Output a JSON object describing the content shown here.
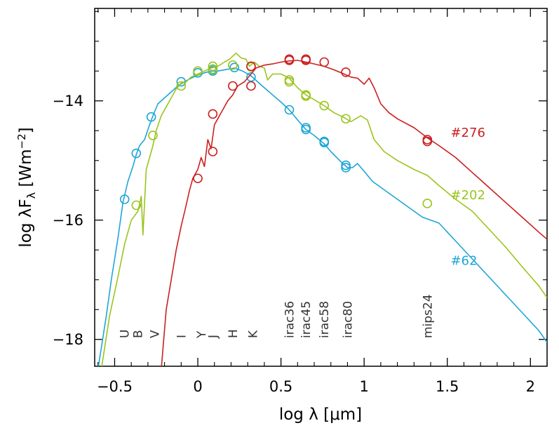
{
  "chart_data": {
    "type": "line",
    "title": "",
    "xlabel_parts": {
      "pre": "log λ [",
      "mu": "μ",
      "post": "m]"
    },
    "ylabel_parts": {
      "pre": "log λF",
      "sub": "λ",
      "mid": " [Wm",
      "sup": "−2",
      "post": "]"
    },
    "xlim": [
      -0.62,
      2.1
    ],
    "ylim": [
      -18.45,
      -12.45
    ],
    "x_ticks": [
      -0.5,
      0,
      0.5,
      1,
      1.5,
      2
    ],
    "x_tick_labels": [
      "−0.5",
      "0",
      "0.5",
      "1",
      "1.5",
      "2"
    ],
    "y_ticks": [
      -14,
      -16,
      -18
    ],
    "y_tick_labels": [
      "−14",
      "−16",
      "−18"
    ],
    "grid": false,
    "bands": [
      {
        "name": "U",
        "x": -0.44
      },
      {
        "name": "B",
        "x": -0.36
      },
      {
        "name": "V",
        "x": -0.26
      },
      {
        "name": "I",
        "x": -0.1
      },
      {
        "name": "Y",
        "x": 0.02
      },
      {
        "name": "J",
        "x": 0.09
      },
      {
        "name": "H",
        "x": 0.21
      },
      {
        "name": "K",
        "x": 0.33
      },
      {
        "name": "irac36",
        "x": 0.55
      },
      {
        "name": "irac45",
        "x": 0.65
      },
      {
        "name": "irac58",
        "x": 0.76
      },
      {
        "name": "irac80",
        "x": 0.9
      },
      {
        "name": "mips24",
        "x": 1.38
      }
    ],
    "series": [
      {
        "name": "#62",
        "color": "#1ea6d6",
        "label_pos": {
          "x": 1.52,
          "y": -16.75
        },
        "model": [
          [
            -0.6,
            -18.5
          ],
          [
            -0.55,
            -17.6
          ],
          [
            -0.52,
            -17.0
          ],
          [
            -0.48,
            -16.3
          ],
          [
            -0.45,
            -15.7
          ],
          [
            -0.42,
            -15.35
          ],
          [
            -0.39,
            -15.1
          ],
          [
            -0.37,
            -14.9
          ],
          [
            -0.35,
            -14.75
          ],
          [
            -0.32,
            -14.65
          ],
          [
            -0.29,
            -14.4
          ],
          [
            -0.27,
            -14.25
          ],
          [
            -0.24,
            -14.05
          ],
          [
            -0.2,
            -13.95
          ],
          [
            -0.16,
            -13.85
          ],
          [
            -0.12,
            -13.75
          ],
          [
            -0.08,
            -13.68
          ],
          [
            -0.04,
            -13.62
          ],
          [
            0.0,
            -13.57
          ],
          [
            0.04,
            -13.53
          ],
          [
            0.08,
            -13.5
          ],
          [
            0.12,
            -13.5
          ],
          [
            0.18,
            -13.47
          ],
          [
            0.22,
            -13.45
          ],
          [
            0.27,
            -13.5
          ],
          [
            0.32,
            -13.58
          ],
          [
            0.36,
            -13.68
          ],
          [
            0.4,
            -13.78
          ],
          [
            0.45,
            -13.9
          ],
          [
            0.5,
            -14.02
          ],
          [
            0.55,
            -14.15
          ],
          [
            0.6,
            -14.32
          ],
          [
            0.65,
            -14.48
          ],
          [
            0.7,
            -14.58
          ],
          [
            0.76,
            -14.72
          ],
          [
            0.8,
            -14.85
          ],
          [
            0.86,
            -15.02
          ],
          [
            0.9,
            -15.12
          ],
          [
            0.93,
            -15.12
          ],
          [
            0.96,
            -15.05
          ],
          [
            1.0,
            -15.18
          ],
          [
            1.05,
            -15.35
          ],
          [
            1.15,
            -15.55
          ],
          [
            1.25,
            -15.75
          ],
          [
            1.35,
            -15.95
          ],
          [
            1.45,
            -16.05
          ],
          [
            1.55,
            -16.35
          ],
          [
            1.65,
            -16.65
          ],
          [
            1.75,
            -16.95
          ],
          [
            1.85,
            -17.25
          ],
          [
            1.95,
            -17.55
          ],
          [
            2.05,
            -17.85
          ],
          [
            2.1,
            -18.05
          ]
        ],
        "observed": [
          [
            -0.44,
            -15.65
          ],
          [
            -0.37,
            -14.88
          ],
          [
            -0.28,
            -14.27
          ],
          [
            -0.1,
            -13.68
          ],
          [
            0.0,
            -13.53
          ],
          [
            0.09,
            -13.5
          ],
          [
            0.09,
            -13.47
          ],
          [
            0.22,
            -13.44
          ],
          [
            0.32,
            -13.6
          ],
          [
            0.55,
            -14.15
          ],
          [
            0.65,
            -14.45
          ],
          [
            0.65,
            -14.48
          ],
          [
            0.76,
            -14.68
          ],
          [
            0.76,
            -14.7
          ],
          [
            0.89,
            -15.08
          ],
          [
            0.89,
            -15.12
          ]
        ]
      },
      {
        "name": "#202",
        "color": "#9bc41e",
        "label_pos": {
          "x": 1.52,
          "y": -15.65
        },
        "model": [
          [
            -0.58,
            -18.5
          ],
          [
            -0.53,
            -17.6
          ],
          [
            -0.48,
            -16.95
          ],
          [
            -0.44,
            -16.4
          ],
          [
            -0.4,
            -16.0
          ],
          [
            -0.36,
            -15.85
          ],
          [
            -0.34,
            -15.6
          ],
          [
            -0.33,
            -16.25
          ],
          [
            -0.31,
            -15.15
          ],
          [
            -0.29,
            -14.95
          ],
          [
            -0.27,
            -14.75
          ],
          [
            -0.25,
            -14.5
          ],
          [
            -0.22,
            -14.25
          ],
          [
            -0.19,
            -14.1
          ],
          [
            -0.16,
            -13.95
          ],
          [
            -0.13,
            -13.8
          ],
          [
            -0.1,
            -13.7
          ],
          [
            -0.07,
            -13.68
          ],
          [
            -0.04,
            -13.6
          ],
          [
            0.0,
            -13.55
          ],
          [
            0.04,
            -13.5
          ],
          [
            0.08,
            -13.45
          ],
          [
            0.12,
            -13.42
          ],
          [
            0.16,
            -13.35
          ],
          [
            0.19,
            -13.3
          ],
          [
            0.23,
            -13.2
          ],
          [
            0.26,
            -13.28
          ],
          [
            0.29,
            -13.3
          ],
          [
            0.31,
            -13.42
          ],
          [
            0.34,
            -13.35
          ],
          [
            0.37,
            -13.42
          ],
          [
            0.4,
            -13.45
          ],
          [
            0.42,
            -13.65
          ],
          [
            0.45,
            -13.55
          ],
          [
            0.5,
            -13.55
          ],
          [
            0.55,
            -13.62
          ],
          [
            0.6,
            -13.78
          ],
          [
            0.65,
            -13.9
          ],
          [
            0.7,
            -13.98
          ],
          [
            0.76,
            -14.08
          ],
          [
            0.82,
            -14.2
          ],
          [
            0.88,
            -14.28
          ],
          [
            0.92,
            -14.35
          ],
          [
            0.98,
            -14.25
          ],
          [
            1.02,
            -14.32
          ],
          [
            1.06,
            -14.65
          ],
          [
            1.12,
            -14.85
          ],
          [
            1.2,
            -15.0
          ],
          [
            1.3,
            -15.15
          ],
          [
            1.38,
            -15.25
          ],
          [
            1.45,
            -15.42
          ],
          [
            1.55,
            -15.65
          ],
          [
            1.65,
            -15.85
          ],
          [
            1.75,
            -16.15
          ],
          [
            1.85,
            -16.45
          ],
          [
            1.95,
            -16.78
          ],
          [
            2.05,
            -17.1
          ],
          [
            2.1,
            -17.3
          ]
        ],
        "observed": [
          [
            -0.37,
            -15.75
          ],
          [
            -0.27,
            -14.58
          ],
          [
            -0.1,
            -13.75
          ],
          [
            0.0,
            -13.5
          ],
          [
            0.09,
            -13.42
          ],
          [
            0.09,
            -13.48
          ],
          [
            0.21,
            -13.4
          ],
          [
            0.32,
            -13.43
          ],
          [
            0.55,
            -13.65
          ],
          [
            0.55,
            -13.68
          ],
          [
            0.65,
            -13.9
          ],
          [
            0.65,
            -13.92
          ],
          [
            0.76,
            -14.08
          ],
          [
            0.89,
            -14.3
          ],
          [
            1.38,
            -15.72
          ]
        ]
      },
      {
        "name": "#276",
        "color": "#cc1f1f",
        "label_pos": {
          "x": 1.52,
          "y": -14.6
        },
        "model": [
          [
            -0.22,
            -18.5
          ],
          [
            -0.19,
            -17.5
          ],
          [
            -0.16,
            -17.0
          ],
          [
            -0.13,
            -16.5
          ],
          [
            -0.1,
            -16.1
          ],
          [
            -0.07,
            -15.75
          ],
          [
            -0.05,
            -15.5
          ],
          [
            -0.03,
            -15.3
          ],
          [
            0.0,
            -15.15
          ],
          [
            0.02,
            -14.95
          ],
          [
            0.04,
            -15.1
          ],
          [
            0.06,
            -14.65
          ],
          [
            0.08,
            -14.8
          ],
          [
            0.1,
            -14.4
          ],
          [
            0.12,
            -14.3
          ],
          [
            0.15,
            -14.15
          ],
          [
            0.18,
            -14.0
          ],
          [
            0.21,
            -13.9
          ],
          [
            0.24,
            -13.75
          ],
          [
            0.28,
            -13.68
          ],
          [
            0.32,
            -13.55
          ],
          [
            0.35,
            -13.45
          ],
          [
            0.4,
            -13.4
          ],
          [
            0.45,
            -13.38
          ],
          [
            0.5,
            -13.35
          ],
          [
            0.55,
            -13.33
          ],
          [
            0.6,
            -13.32
          ],
          [
            0.65,
            -13.35
          ],
          [
            0.7,
            -13.38
          ],
          [
            0.76,
            -13.42
          ],
          [
            0.82,
            -13.48
          ],
          [
            0.88,
            -13.55
          ],
          [
            0.92,
            -13.6
          ],
          [
            0.96,
            -13.62
          ],
          [
            1.0,
            -13.72
          ],
          [
            1.03,
            -13.62
          ],
          [
            1.06,
            -13.78
          ],
          [
            1.1,
            -14.05
          ],
          [
            1.15,
            -14.2
          ],
          [
            1.2,
            -14.3
          ],
          [
            1.3,
            -14.45
          ],
          [
            1.38,
            -14.62
          ],
          [
            1.45,
            -14.75
          ],
          [
            1.55,
            -14.95
          ],
          [
            1.65,
            -15.2
          ],
          [
            1.75,
            -15.45
          ],
          [
            1.85,
            -15.7
          ],
          [
            1.95,
            -15.95
          ],
          [
            2.05,
            -16.2
          ],
          [
            2.1,
            -16.32
          ]
        ],
        "observed": [
          [
            0.0,
            -15.3
          ],
          [
            0.09,
            -14.85
          ],
          [
            0.09,
            -14.22
          ],
          [
            0.21,
            -13.75
          ],
          [
            0.32,
            -13.75
          ],
          [
            0.32,
            -13.42
          ],
          [
            0.55,
            -13.32
          ],
          [
            0.55,
            -13.3
          ],
          [
            0.65,
            -13.3
          ],
          [
            0.65,
            -13.32
          ],
          [
            0.76,
            -13.35
          ],
          [
            0.89,
            -13.52
          ],
          [
            1.38,
            -14.68
          ],
          [
            1.38,
            -14.65
          ]
        ]
      }
    ]
  }
}
